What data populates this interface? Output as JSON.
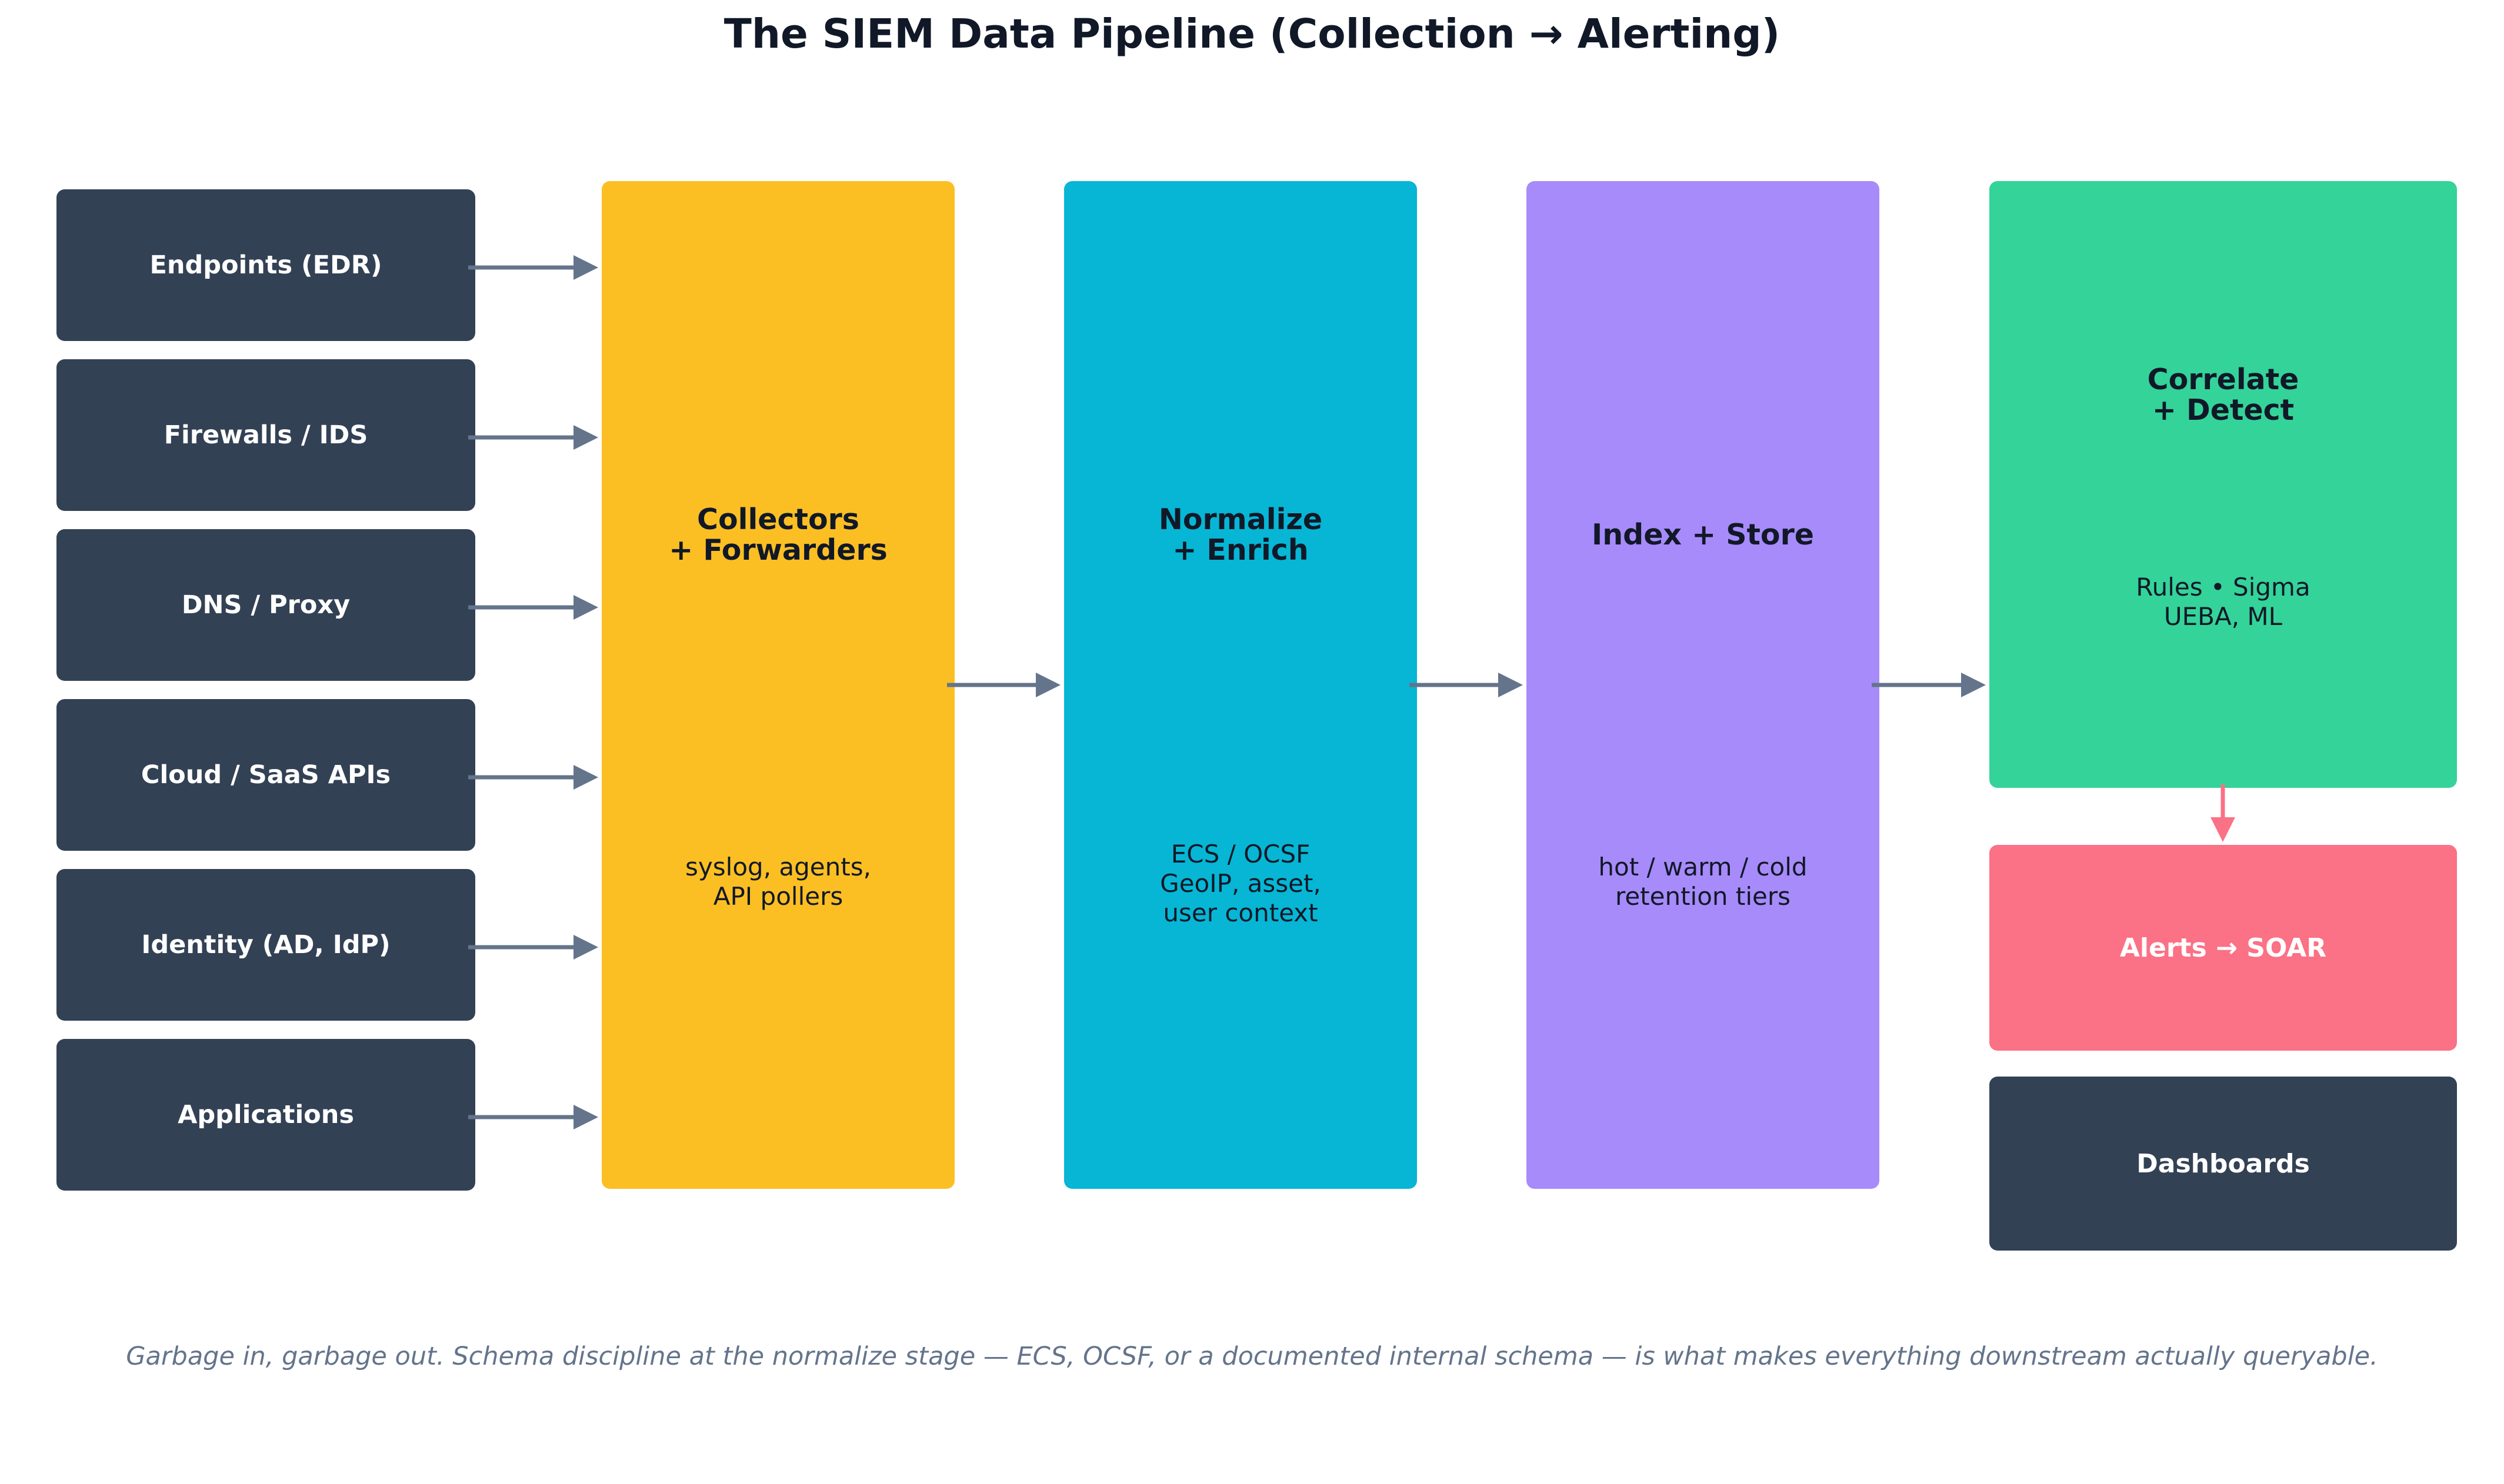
{
  "title": "The SIEM Data Pipeline (Collection → Alerting)",
  "sources": [
    {
      "label": "Endpoints (EDR)"
    },
    {
      "label": "Firewalls / IDS"
    },
    {
      "label": "DNS / Proxy"
    },
    {
      "label": "Cloud / SaaS APIs"
    },
    {
      "label": "Identity (AD, IdP)"
    },
    {
      "label": "Applications"
    }
  ],
  "stages": [
    {
      "heading": "Collectors\n+ Forwarders",
      "detail": "syslog, agents,\nAPI pollers",
      "color": "#fbbf24"
    },
    {
      "heading": "Normalize\n+ Enrich",
      "detail": "ECS / OCSF\nGeoIP, asset,\nuser context",
      "color": "#06b6d4"
    },
    {
      "heading": "Index + Store",
      "detail": "hot / warm / cold\nretention tiers",
      "color": "#a78bfa"
    }
  ],
  "detect": {
    "heading": "Correlate\n+ Detect",
    "detail": "Rules • Sigma\nUEBA, ML",
    "color": "#34d399"
  },
  "alerts": {
    "label": "Alerts → SOAR",
    "color": "#fb7185"
  },
  "dashboards": {
    "label": "Dashboards"
  },
  "caption": "Garbage in, garbage out. Schema discipline at the normalize stage — ECS, OCSF, or a documented internal schema — is what makes everything downstream actually queryable.",
  "colors": {
    "arrow": "#64748b",
    "alert_arrow": "#fb7185",
    "source_box": "#334155"
  }
}
